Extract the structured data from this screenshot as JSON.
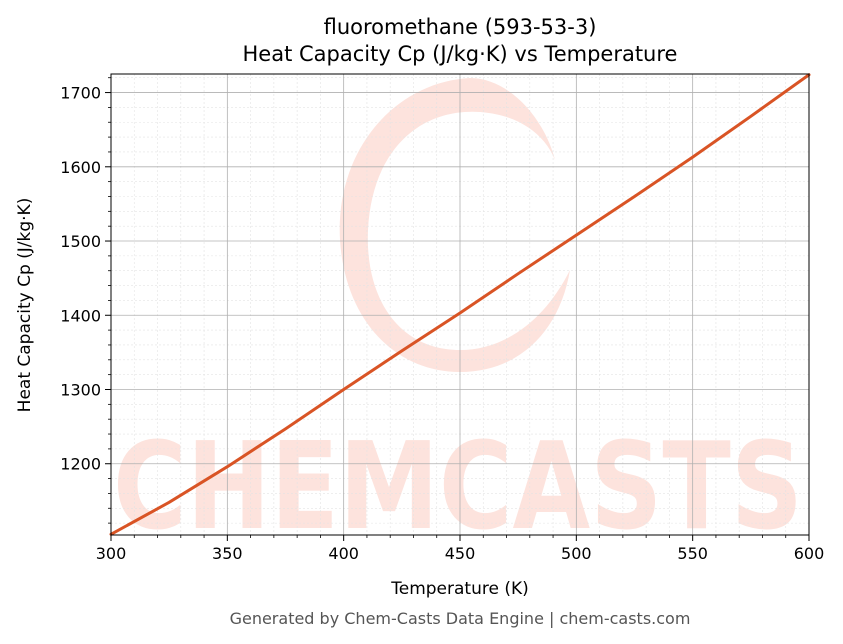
{
  "chart_data": {
    "type": "line",
    "title_line1": "fluoromethane (593-53-3)",
    "title_line2": "Heat Capacity Cp (J/kg·K) vs Temperature",
    "xlabel": "Temperature (K)",
    "ylabel": "Heat Capacity Cp (J/kg·K)",
    "xlim": [
      300,
      600
    ],
    "ylim": [
      1104,
      1725
    ],
    "x_ticks": [
      300,
      350,
      400,
      450,
      500,
      550,
      600
    ],
    "y_ticks": [
      1200,
      1300,
      1400,
      1500,
      1600,
      1700
    ],
    "grid": true,
    "series": [
      {
        "color": "#d95425",
        "x": [
          300,
          325,
          350,
          375,
          400,
          425,
          450,
          475,
          500,
          525,
          550,
          575,
          600
        ],
        "y": [
          1105,
          1148,
          1196,
          1247,
          1300,
          1352,
          1403,
          1456,
          1508,
          1560,
          1613,
          1668,
          1724
        ]
      }
    ]
  },
  "watermark": {
    "text": "CHEMCASTS",
    "color": "#fde3dd"
  },
  "footer": {
    "text": "Generated by Chem-Casts Data Engine | chem-casts.com"
  }
}
